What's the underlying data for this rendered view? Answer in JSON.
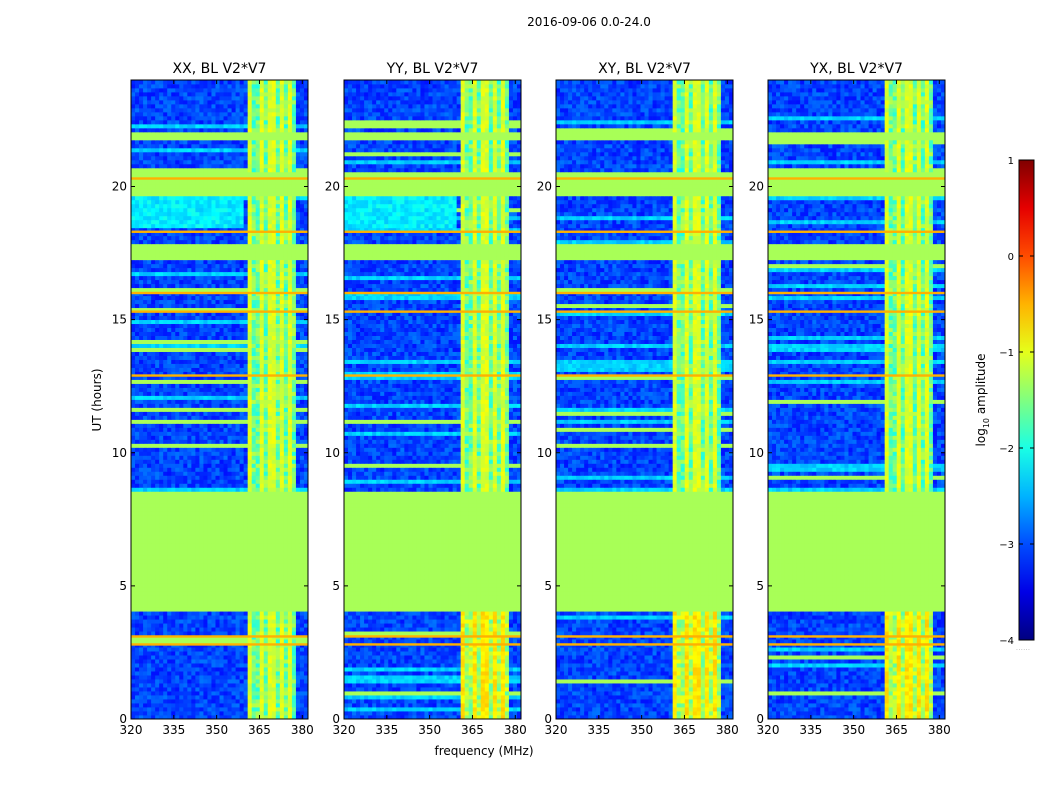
{
  "figure": {
    "suptitle": "2016-09-06 0.0-24.0"
  },
  "chart_data": {
    "type": "heatmap",
    "title": "2016-09-06 0.0-24.0",
    "xlabel": "frequency (MHz)",
    "ylabel": "UT (hours)",
    "xlim": [
      320,
      382
    ],
    "ylim": [
      0,
      24
    ],
    "xticks": [
      320,
      335,
      350,
      365,
      380
    ],
    "yticks": [
      0,
      5,
      10,
      15,
      20
    ],
    "panels": [
      {
        "title": "XX, BL V2*V7",
        "pol": "XX",
        "baseline": "V2*V7"
      },
      {
        "title": "YY, BL V2*V7",
        "pol": "YY",
        "baseline": "V2*V7"
      },
      {
        "title": "XY, BL V2*V7",
        "pol": "XY",
        "baseline": "V2*V7"
      },
      {
        "title": "YX, BL V2*V7",
        "pol": "YX",
        "baseline": "V2*V7"
      }
    ],
    "colorbar": {
      "label": "log10 amplitude",
      "label_main": "log",
      "label_sub": "10",
      "label_rest": " amplitude",
      "range": [
        -4,
        1
      ],
      "ticks": [
        -4,
        -3,
        -2,
        -1,
        0,
        1
      ],
      "tick_labels": [
        "−4",
        "−3",
        "−2",
        "−1",
        "0",
        "1"
      ],
      "colormap": "jet"
    },
    "flagged_value": -1.3,
    "flagged_time_ranges_hours": [
      [
        4.0,
        8.5
      ],
      [
        17.2,
        17.8
      ],
      [
        19.6,
        20.6
      ],
      [
        21.7,
        22.1
      ]
    ],
    "high_amplitude_bands_hours": [
      2.8,
      3.1,
      12.9,
      15.3,
      16.0,
      18.3,
      20.3
    ],
    "rfi_frequency_range_mhz": [
      360.5,
      377.5
    ],
    "rfi_channels_mhz": [
      362,
      366,
      369.5,
      373,
      376
    ]
  },
  "colors": {
    "flagged": "#9cff5c",
    "background_low": "#1a2cff",
    "background_mid": "#1e7dff",
    "rfi": "#33ddee",
    "high": "#ffb000",
    "axis": "#000000"
  }
}
